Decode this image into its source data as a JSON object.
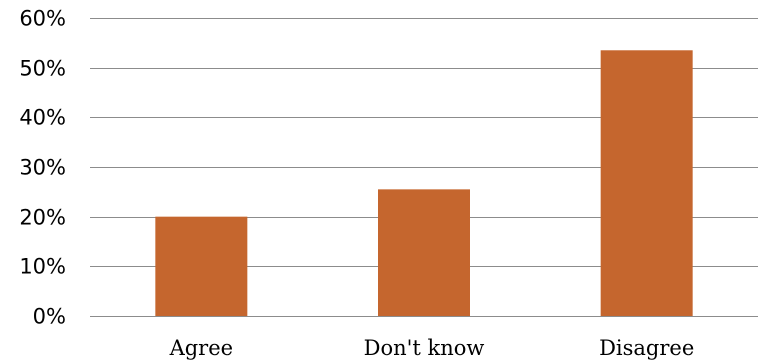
{
  "chart_data": {
    "type": "bar",
    "title": "",
    "xlabel": "",
    "ylabel": "",
    "categories": [
      "Agree",
      "Don't know",
      "Disagree"
    ],
    "values": [
      0.2,
      0.255,
      0.535
    ],
    "ylim": [
      0,
      0.6
    ],
    "y_ticks": [
      {
        "value": 0.0,
        "label": "0%"
      },
      {
        "value": 0.1,
        "label": "10%"
      },
      {
        "value": 0.2,
        "label": "20%"
      },
      {
        "value": 0.3,
        "label": "30%"
      },
      {
        "value": 0.4,
        "label": "40%"
      },
      {
        "value": 0.5,
        "label": "50%"
      },
      {
        "value": 0.6,
        "label": "60%"
      }
    ],
    "bar_color": "#C5662E",
    "grid": true,
    "legend": "none"
  }
}
